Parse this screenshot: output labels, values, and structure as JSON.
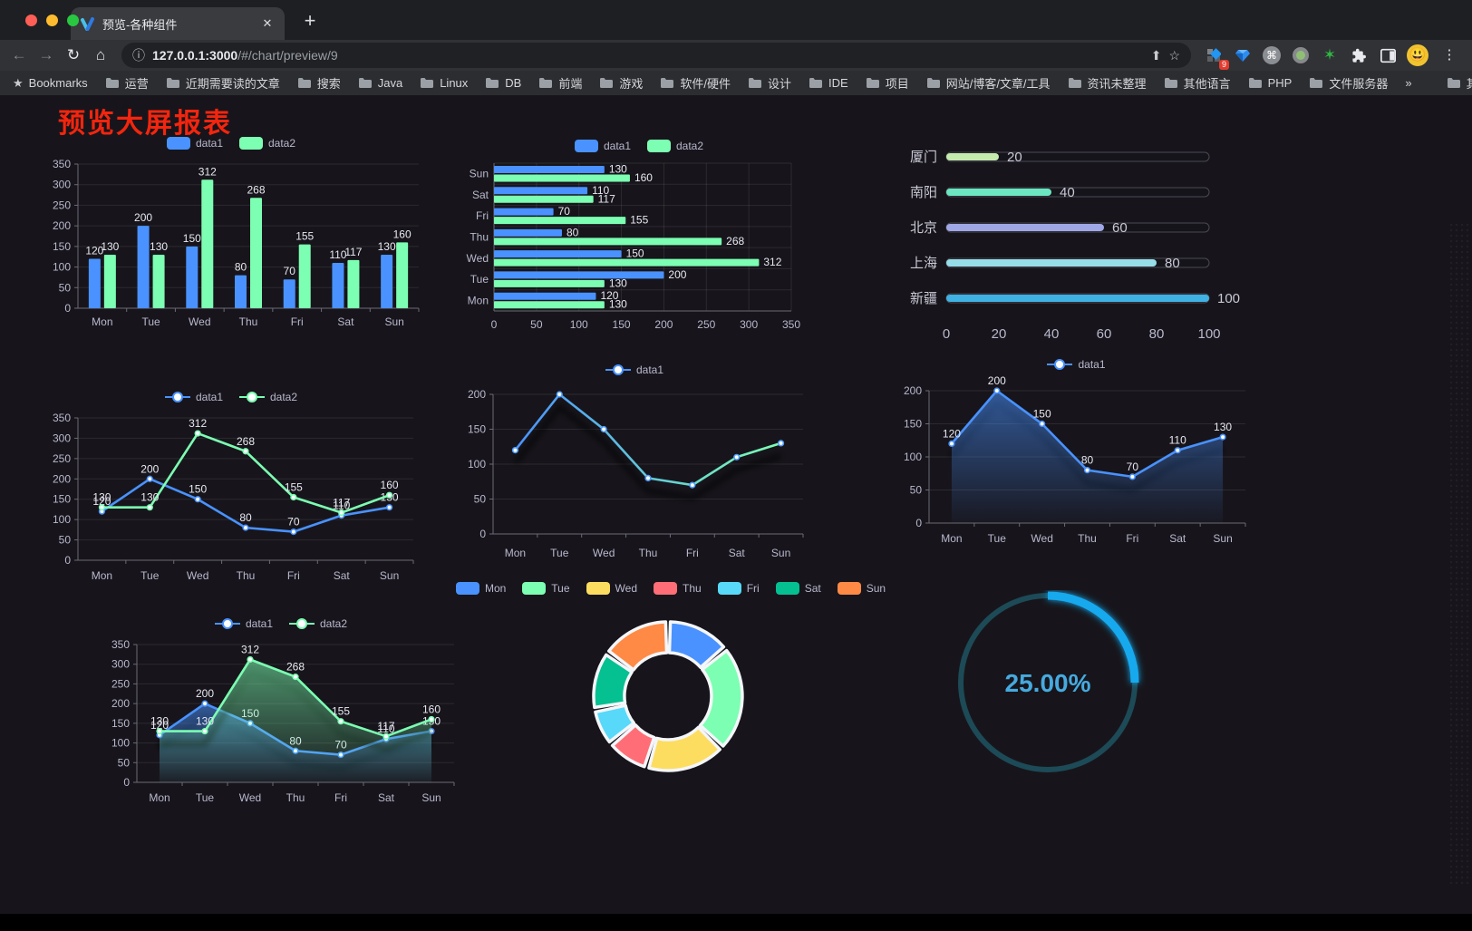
{
  "browser": {
    "tab_title": "预览-各种组件",
    "close_glyph": "✕",
    "newtab_glyph": "+",
    "back_glyph": "←",
    "forward_glyph": "→",
    "reload_glyph": "↻",
    "home_glyph": "⌂",
    "info_glyph": "ⓘ",
    "share_glyph": "⬆",
    "star_glyph": "☆",
    "url_host": "127.0.0.1:3000",
    "url_path": "/#/chart/preview/9",
    "ext_badge": "9",
    "menu_glyph": "⋮",
    "avatar_glyph": "😃",
    "bookmarks_label": "Bookmarks",
    "bookmarks": [
      "运营",
      "近期需要读的文章",
      "搜索",
      "Java",
      "Linux",
      "DB",
      "前端",
      "游戏",
      "软件/硬件",
      "设计",
      "IDE",
      "项目",
      "网站/博客/文章/工具",
      "资讯未整理",
      "其他语言",
      "PHP",
      "文件服务器"
    ],
    "overflow_glyph": "»",
    "other_bookmarks": "其他书签"
  },
  "page": {
    "title": "预览大屏报表",
    "title_color": "#f3250e"
  },
  "palette": {
    "blue": "#4992ff",
    "green": "#7cffb2",
    "axis_text": "#b9b8ce",
    "label_text": "#e8e8f2"
  },
  "chart_data": [
    {
      "type": "bar",
      "orientation": "vertical",
      "categories": [
        "Mon",
        "Tue",
        "Wed",
        "Thu",
        "Fri",
        "Sat",
        "Sun"
      ],
      "series": [
        {
          "name": "data1",
          "color": "#4992ff",
          "values": [
            120,
            200,
            150,
            80,
            70,
            110,
            130
          ]
        },
        {
          "name": "data2",
          "color": "#7cffb2",
          "values": [
            130,
            130,
            312,
            268,
            155,
            117,
            160
          ]
        }
      ],
      "ylim": [
        0,
        350
      ],
      "yticks": [
        0,
        50,
        100,
        150,
        200,
        250,
        300,
        350
      ],
      "show_labels": true,
      "grid": true,
      "legend_position": "top"
    },
    {
      "type": "bar",
      "orientation": "horizontal",
      "categories_top_to_bottom": [
        "Sun",
        "Sat",
        "Fri",
        "Thu",
        "Wed",
        "Tue",
        "Mon"
      ],
      "series": [
        {
          "name": "data1",
          "color": "#4992ff",
          "values": [
            130,
            110,
            70,
            80,
            150,
            200,
            120
          ]
        },
        {
          "name": "data2",
          "color": "#7cffb2",
          "values": [
            160,
            117,
            155,
            268,
            312,
            130,
            130
          ]
        }
      ],
      "xlim": [
        0,
        350
      ],
      "xticks": [
        0,
        50,
        100,
        150,
        200,
        250,
        300,
        350
      ],
      "show_labels": true,
      "grid": true,
      "legend_position": "top"
    },
    {
      "type": "bar",
      "orientation": "progress",
      "items": [
        {
          "label": "厦门",
          "value": 20,
          "color": "#c4ebad"
        },
        {
          "label": "南阳",
          "value": 40,
          "color": "#6be6c1"
        },
        {
          "label": "北京",
          "value": 60,
          "color": "#a0a7e6"
        },
        {
          "label": "上海",
          "value": 80,
          "color": "#96dee8"
        },
        {
          "label": "新疆",
          "value": 100,
          "color": "#3fb1e3"
        }
      ],
      "xlim": [
        0,
        100
      ],
      "xticks": [
        0,
        20,
        40,
        60,
        80,
        100
      ]
    },
    {
      "type": "line",
      "categories": [
        "Mon",
        "Tue",
        "Wed",
        "Thu",
        "Fri",
        "Sat",
        "Sun"
      ],
      "series": [
        {
          "name": "data1",
          "color": "#4992ff",
          "values": [
            120,
            200,
            150,
            80,
            70,
            110,
            130
          ]
        },
        {
          "name": "data2",
          "color": "#7cffb2",
          "values": [
            130,
            130,
            312,
            268,
            155,
            117,
            160
          ]
        }
      ],
      "ylim": [
        0,
        350
      ],
      "yticks": [
        0,
        50,
        100,
        150,
        200,
        250,
        300,
        350
      ],
      "show_labels": true,
      "legend_position": "top"
    },
    {
      "type": "line",
      "categories": [
        "Mon",
        "Tue",
        "Wed",
        "Thu",
        "Fri",
        "Sat",
        "Sun"
      ],
      "series": [
        {
          "name": "data1",
          "color": "#4992ff",
          "values": [
            120,
            200,
            150,
            80,
            70,
            110,
            130
          ]
        }
      ],
      "line_gradient": [
        "#4992ff",
        "#7cffb2"
      ],
      "shadow": true,
      "ylim": [
        0,
        200
      ],
      "yticks": [
        0,
        50,
        100,
        150,
        200
      ],
      "show_labels": false,
      "legend_position": "top"
    },
    {
      "type": "area",
      "categories": [
        "Mon",
        "Tue",
        "Wed",
        "Thu",
        "Fri",
        "Sat",
        "Sun"
      ],
      "series": [
        {
          "name": "data1",
          "color": "#4992ff",
          "values": [
            120,
            200,
            150,
            80,
            70,
            110,
            130
          ],
          "area": true
        }
      ],
      "shadow": true,
      "ylim": [
        0,
        200
      ],
      "yticks": [
        0,
        50,
        100,
        150,
        200
      ],
      "show_labels": true,
      "legend_position": "top"
    },
    {
      "type": "area",
      "categories": [
        "Mon",
        "Tue",
        "Wed",
        "Thu",
        "Fri",
        "Sat",
        "Sun"
      ],
      "series": [
        {
          "name": "data1",
          "color": "#4992ff",
          "values": [
            120,
            200,
            150,
            80,
            70,
            110,
            130
          ],
          "area": true
        },
        {
          "name": "data2",
          "color": "#7cffb2",
          "values": [
            130,
            130,
            312,
            268,
            155,
            117,
            160
          ],
          "area": true
        }
      ],
      "shadow": true,
      "ylim": [
        0,
        350
      ],
      "yticks": [
        0,
        50,
        100,
        150,
        200,
        250,
        300,
        350
      ],
      "show_labels": true,
      "legend_position": "top"
    },
    {
      "type": "pie",
      "donut": true,
      "categories": [
        "Mon",
        "Tue",
        "Wed",
        "Thu",
        "Fri",
        "Sat",
        "Sun"
      ],
      "values": [
        120,
        200,
        150,
        80,
        70,
        110,
        130
      ],
      "colors": [
        "#4992ff",
        "#7cffb2",
        "#fddd60",
        "#ff6e76",
        "#58d9f9",
        "#05c091",
        "#ff8a45"
      ],
      "legend_position": "top"
    },
    {
      "type": "gauge-progress",
      "text": "25.00%",
      "percent": 25,
      "bar_color": "#18a9ee",
      "track_color": "#1d4a57",
      "text_color": "#46aadf"
    }
  ]
}
